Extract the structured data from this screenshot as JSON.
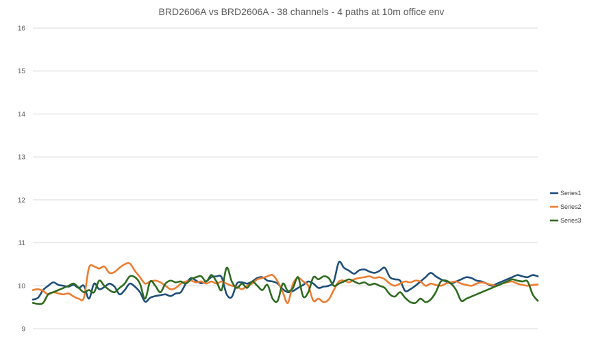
{
  "chart_data": {
    "type": "line",
    "title": "BRD2606A vs BRD2606A - 38 channels - 4 paths at 10m office env",
    "xlabel": "",
    "ylabel": "",
    "ylim": [
      9,
      16
    ],
    "yticks": [
      "9",
      "10",
      "11",
      "12",
      "13",
      "14",
      "15",
      "16"
    ],
    "grid": true,
    "legend_position": "right",
    "x": [
      1,
      2,
      3,
      4,
      5,
      6,
      7,
      8,
      9,
      10,
      11,
      12,
      13,
      14,
      15,
      16,
      17,
      18,
      19,
      20,
      21,
      22,
      23,
      24,
      25,
      26,
      27,
      28,
      29,
      30,
      31,
      32,
      33,
      34,
      35,
      36,
      37,
      38,
      39,
      40,
      41,
      42,
      43,
      44,
      45,
      46,
      47,
      48,
      49,
      50,
      51,
      52,
      53,
      54,
      55,
      56,
      57,
      58,
      59,
      60,
      61,
      62,
      63,
      64,
      65,
      66,
      67,
      68,
      69,
      70,
      71,
      72,
      73,
      74,
      75,
      76,
      77,
      78,
      79,
      80,
      81,
      82,
      83,
      84,
      85,
      86,
      87,
      88,
      89,
      90,
      91,
      92,
      93,
      94,
      95,
      96,
      97,
      98,
      99,
      100
    ],
    "series": [
      {
        "name": "Series1",
        "color": "#1f4e79",
        "values": [
          9.68,
          9.72,
          9.9,
          10.0,
          10.08,
          10.02,
          10.0,
          9.98,
          10.02,
          9.95,
          10.0,
          9.7,
          10.05,
          9.92,
          9.97,
          10.05,
          9.98,
          9.8,
          9.9,
          10.05,
          9.98,
          9.85,
          9.63,
          9.72,
          9.76,
          9.78,
          9.8,
          9.76,
          9.82,
          9.85,
          10.05,
          10.18,
          10.12,
          10.06,
          10.1,
          10.2,
          10.22,
          10.2,
          9.8,
          9.74,
          10.05,
          10.08,
          10.05,
          10.1,
          10.18,
          10.2,
          10.12,
          10.1,
          10.05,
          9.92,
          9.85,
          9.88,
          9.95,
          10.02,
          10.1,
          10.05,
          9.95,
          9.98,
          10.0,
          10.1,
          10.55,
          10.42,
          10.35,
          10.28,
          10.36,
          10.38,
          10.33,
          10.3,
          10.35,
          10.42,
          10.2,
          10.15,
          10.12,
          9.88,
          9.92,
          10.0,
          10.1,
          10.2,
          10.3,
          10.22,
          10.15,
          10.1,
          10.05,
          10.1,
          10.15,
          10.2,
          10.18,
          10.12,
          10.1,
          10.05,
          10.0,
          10.05,
          10.1,
          10.15,
          10.2,
          10.25,
          10.22,
          10.2,
          10.25,
          10.22
        ]
      },
      {
        "name": "Series2",
        "color": "#ed7d31",
        "values": [
          9.9,
          9.92,
          9.88,
          9.8,
          9.85,
          9.82,
          9.8,
          9.82,
          9.75,
          9.7,
          9.72,
          10.42,
          10.45,
          10.4,
          10.45,
          10.3,
          10.32,
          10.42,
          10.5,
          10.52,
          10.35,
          10.2,
          10.05,
          10.1,
          10.12,
          10.08,
          10.0,
          9.92,
          9.95,
          10.05,
          10.1,
          10.12,
          10.08,
          10.1,
          10.05,
          10.1,
          10.05,
          10.1,
          10.05,
          10.0,
          9.98,
          9.92,
          10.0,
          10.05,
          10.15,
          10.18,
          10.22,
          10.25,
          10.1,
          9.85,
          9.6,
          10.05,
          10.18,
          10.1,
          10.0,
          9.65,
          9.7,
          9.62,
          9.68,
          9.9,
          10.1,
          10.12,
          10.08,
          10.15,
          10.18,
          10.2,
          10.22,
          10.18,
          10.2,
          10.15,
          10.05,
          10.0,
          10.05,
          10.1,
          10.08,
          10.12,
          10.1,
          10.0,
          10.05,
          10.02,
          10.0,
          10.05,
          10.08,
          10.1,
          10.05,
          10.02,
          10.0,
          10.05,
          10.08,
          10.05,
          10.02,
          10.0,
          10.05,
          10.08,
          10.1,
          10.05,
          10.02,
          10.0,
          10.02,
          10.03
        ]
      },
      {
        "name": "Series3",
        "color": "#2e6b1f",
        "values": [
          9.6,
          9.58,
          9.6,
          9.8,
          9.85,
          9.9,
          9.95,
          10.0,
          10.05,
          9.95,
          9.85,
          9.9,
          9.85,
          10.12,
          10.0,
          9.9,
          9.85,
          9.95,
          10.05,
          10.22,
          10.2,
          10.05,
          9.7,
          10.1,
          10.0,
          9.85,
          10.05,
          10.12,
          10.08,
          10.1,
          10.05,
          10.15,
          10.2,
          10.22,
          10.1,
          10.25,
          10.1,
          9.9,
          10.42,
          10.1,
          9.95,
          10.05,
          9.95,
          10.1,
          10.0,
          9.9,
          10.02,
          9.7,
          9.65,
          10.05,
          9.88,
          9.95,
          10.2,
          9.75,
          9.85,
          10.2,
          10.15,
          10.22,
          10.18,
          10.0,
          10.05,
          10.1,
          10.15,
          10.1,
          10.05,
          10.08,
          10.02,
          10.05,
          10.0,
          9.95,
          9.8,
          9.75,
          9.85,
          9.72,
          9.62,
          9.6,
          9.7,
          9.62,
          9.68,
          9.85,
          10.1,
          10.12,
          10.05,
          9.9,
          9.65,
          9.7,
          9.75,
          9.8,
          9.85,
          9.9,
          9.95,
          10.0,
          10.05,
          10.1,
          10.15,
          10.12,
          10.1,
          10.1,
          9.8,
          9.65
        ]
      }
    ]
  }
}
